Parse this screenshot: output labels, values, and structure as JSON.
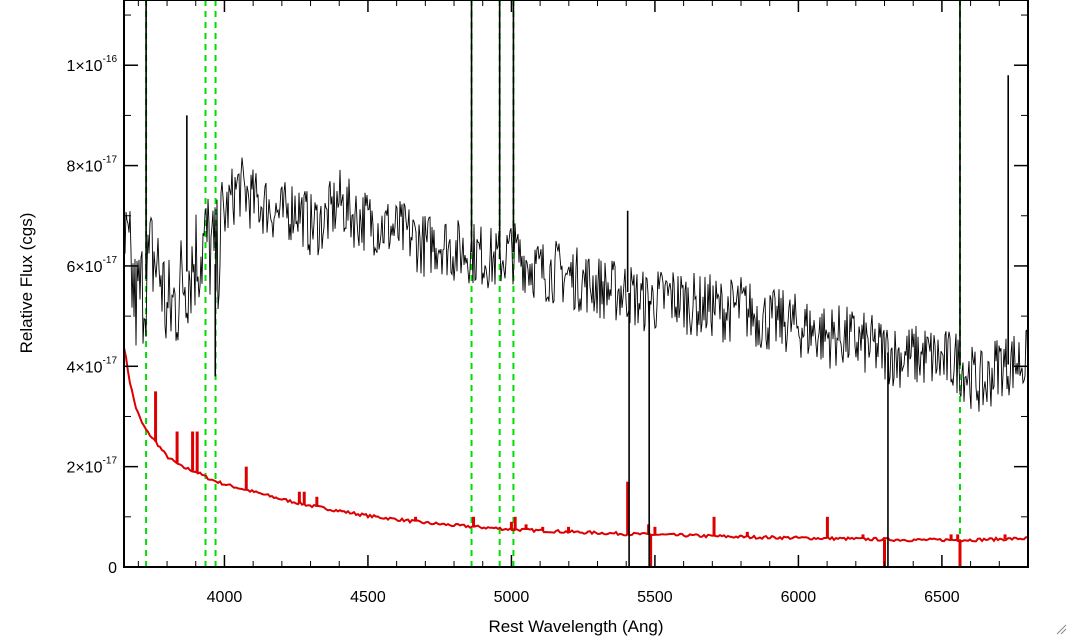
{
  "chart_data": {
    "type": "line",
    "title": "",
    "xlabel": "Rest Wavelength (Ang)",
    "ylabel": "Relative Flux (cgs)",
    "xlim": [
      3650,
      6800
    ],
    "ylim": [
      0,
      1.13e-16
    ],
    "x_ticks": [
      {
        "value": 4000,
        "label": "4000"
      },
      {
        "value": 4500,
        "label": "4500"
      },
      {
        "value": 5000,
        "label": "5000"
      },
      {
        "value": 5500,
        "label": "5500"
      },
      {
        "value": 6000,
        "label": "6000"
      },
      {
        "value": 6500,
        "label": "6500"
      }
    ],
    "y_ticks": [
      {
        "value": 0,
        "label": "0",
        "mantissa": "",
        "exponent": ""
      },
      {
        "value": 2e-17,
        "label": "2×10-17",
        "mantissa": "2×10",
        "exponent": "-17"
      },
      {
        "value": 4e-17,
        "label": "4×10-17",
        "mantissa": "4×10",
        "exponent": "-17"
      },
      {
        "value": 6e-17,
        "label": "6×10-17",
        "mantissa": "6×10",
        "exponent": "-17"
      },
      {
        "value": 8e-17,
        "label": "8×10-17",
        "mantissa": "8×10",
        "exponent": "-17"
      },
      {
        "value": 1e-16,
        "label": "1×10-16",
        "mantissa": "1×10",
        "exponent": "-16"
      }
    ],
    "grid": false,
    "legend": "none",
    "series": [
      {
        "color": "#000000",
        "x": [
          3650,
          3670,
          3690,
          3720,
          3750,
          3780,
          3800,
          3830,
          3860,
          3900,
          3940,
          3970,
          4000,
          4030,
          4050,
          4100,
          4150,
          4200,
          4250,
          4300,
          4350,
          4400,
          4450,
          4500,
          4550,
          4600,
          4650,
          4700,
          4750,
          4800,
          4850,
          4900,
          4950,
          5000,
          5050,
          5100,
          5150,
          5200,
          5250,
          5300,
          5350,
          5400,
          5450,
          5500,
          5550,
          5600,
          5650,
          5700,
          5750,
          5800,
          5850,
          5900,
          5950,
          6000,
          6050,
          6100,
          6150,
          6200,
          6250,
          6300,
          6350,
          6400,
          6450,
          6500,
          6550,
          6600,
          6650,
          6680,
          6700,
          6720,
          6750,
          6780,
          6800
        ],
        "y": [
          6.3e-17,
          6e-17,
          5.2e-17,
          5.6e-17,
          6.2e-17,
          5.8e-17,
          5e-17,
          5.3e-17,
          5.8e-17,
          6.2e-17,
          6.5e-17,
          6e-17,
          7e-17,
          7.4e-17,
          7.6e-17,
          7.3e-17,
          7.2e-17,
          7e-17,
          7.2e-17,
          6.8e-17,
          6.9e-17,
          7.3e-17,
          7e-17,
          6.9e-17,
          6.8e-17,
          6.7e-17,
          6.6e-17,
          6.4e-17,
          6.5e-17,
          6.3e-17,
          6.3e-17,
          6.2e-17,
          6.1e-17,
          6.3e-17,
          6.1e-17,
          5.9e-17,
          5.9e-17,
          5.8e-17,
          5.7e-17,
          5.6e-17,
          5.5e-17,
          5.5e-17,
          5.3e-17,
          5.3e-17,
          5.4e-17,
          5.3e-17,
          5.2e-17,
          5.2e-17,
          5.1e-17,
          5.2e-17,
          5e-17,
          4.9e-17,
          4.9e-17,
          4.8e-17,
          4.7e-17,
          4.6e-17,
          4.6e-17,
          4.5e-17,
          4.4e-17,
          4.3e-17,
          4.2e-17,
          4.2e-17,
          4.2e-17,
          4.1e-17,
          4.1e-17,
          3.8e-17,
          3.6e-17,
          3.9e-17,
          4.1e-17,
          4e-17,
          4.1e-17,
          4.1e-17,
          4.1e-17
        ],
        "spikes": [
          {
            "x": 3727,
            "y": 1.2e-16
          },
          {
            "x": 3869,
            "y": 9e-17
          },
          {
            "x": 3968,
            "y": 3.8e-17
          },
          {
            "x": 4861,
            "y": 1.2e-16
          },
          {
            "x": 4959,
            "y": 1.2e-16
          },
          {
            "x": 5007,
            "y": 1.2e-16
          },
          {
            "x": 5405,
            "y": 7.1e-17
          },
          {
            "x": 5410,
            "y": 0
          },
          {
            "x": 5480,
            "y": 0
          },
          {
            "x": 6312,
            "y": 0
          },
          {
            "x": 6563,
            "y": 1.2e-16
          },
          {
            "x": 6731,
            "y": 9.8e-17
          }
        ]
      },
      {
        "color": "#dd0000",
        "x": [
          3650,
          3670,
          3690,
          3710,
          3730,
          3760,
          3800,
          3850,
          3900,
          3950,
          4000,
          4100,
          4200,
          4300,
          4400,
          4500,
          4600,
          4700,
          4800,
          4900,
          5000,
          5200,
          5400,
          5600,
          5800,
          6000,
          6200,
          6400,
          6600,
          6800
        ],
        "y": [
          4.4e-17,
          3.7e-17,
          3.2e-17,
          2.9e-17,
          2.7e-17,
          2.5e-17,
          2.2e-17,
          2e-17,
          1.9e-17,
          1.75e-17,
          1.65e-17,
          1.5e-17,
          1.35e-17,
          1.22e-17,
          1.12e-17,
          1.02e-17,
          9.5e-18,
          8.8e-18,
          8.3e-18,
          7.9e-18,
          7.5e-18,
          7e-18,
          6.6e-18,
          6.3e-18,
          6e-18,
          5.8e-18,
          5.6e-18,
          5.4e-18,
          5.4e-18,
          5.7e-18
        ],
        "spikes": [
          {
            "x": 3760,
            "y": 3.5e-17
          },
          {
            "x": 3835,
            "y": 2.7e-17
          },
          {
            "x": 3889,
            "y": 2.7e-17
          },
          {
            "x": 3905,
            "y": 2.7e-17
          },
          {
            "x": 4076,
            "y": 2e-17
          },
          {
            "x": 4261,
            "y": 1.5e-17
          },
          {
            "x": 4278,
            "y": 1.5e-17
          },
          {
            "x": 4322,
            "y": 1.4e-17
          },
          {
            "x": 4450,
            "y": 1.1e-17
          },
          {
            "x": 4666,
            "y": 1e-17
          },
          {
            "x": 4868,
            "y": 1e-17
          },
          {
            "x": 5000,
            "y": 9e-18
          },
          {
            "x": 5013,
            "y": 1e-17
          },
          {
            "x": 5051,
            "y": 8.5e-18
          },
          {
            "x": 5109,
            "y": 8e-18
          },
          {
            "x": 5199,
            "y": 8e-18
          },
          {
            "x": 5405,
            "y": 1.7e-17
          },
          {
            "x": 5478,
            "y": 8.5e-18
          },
          {
            "x": 5485,
            "y": -1e-17
          },
          {
            "x": 5500,
            "y": 8e-18
          },
          {
            "x": 5706,
            "y": 1e-17
          },
          {
            "x": 5822,
            "y": 7e-18
          },
          {
            "x": 6101,
            "y": 1e-17
          },
          {
            "x": 6225,
            "y": 6.5e-18
          },
          {
            "x": 6300,
            "y": -1e-17
          },
          {
            "x": 6532,
            "y": 6.5e-18
          },
          {
            "x": 6555,
            "y": 6.5e-18
          },
          {
            "x": 6563,
            "y": -1e-17
          },
          {
            "x": 6720,
            "y": 6.5e-18
          }
        ]
      }
    ],
    "vertical_lines": {
      "color": "#00dd00",
      "style": "dashed",
      "x": [
        3727,
        3934,
        3969,
        4861,
        4959,
        5007,
        6563
      ]
    }
  }
}
